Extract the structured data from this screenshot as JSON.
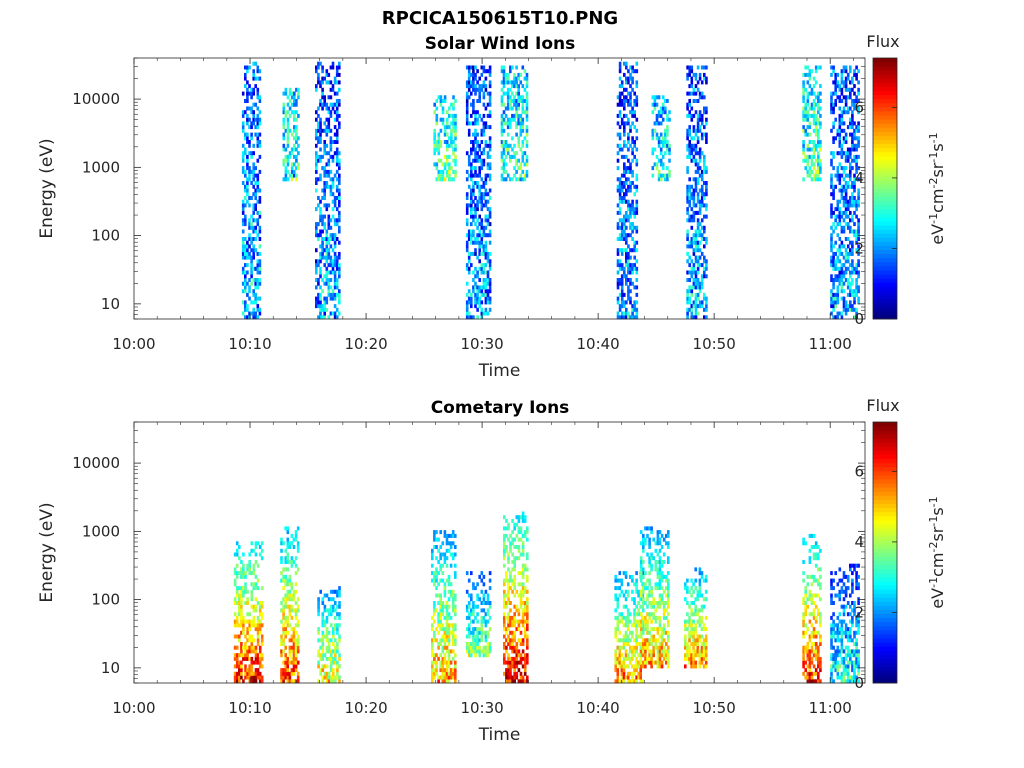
{
  "figure": {
    "title": "RPCICA150615T10.PNG"
  },
  "chart_data": [
    {
      "type": "heatmap",
      "title": "Solar Wind Ions",
      "xlabel": "Time",
      "ylabel": "Energy (eV)",
      "x_ticks": [
        "10:00",
        "10:10",
        "10:20",
        "10:30",
        "10:40",
        "10:50",
        "11:00"
      ],
      "x_range_minutes": [
        0,
        63
      ],
      "y_scale": "log",
      "y_ticks": [
        "10",
        "100",
        "1000",
        "10000"
      ],
      "y_range": [
        6,
        40000
      ],
      "colorbar": {
        "title": "Flux",
        "label": "eV-1cm-2sr-1s-1",
        "range": [
          0,
          7.4
        ],
        "ticks": [
          "0",
          "2",
          "4",
          "6"
        ],
        "colormap": "jet"
      },
      "bursts": [
        {
          "t0": 9.3,
          "t1": 10.8,
          "emin": 6,
          "emax": 35000,
          "level": 1.6
        },
        {
          "t0": 12.8,
          "t1": 14.2,
          "emin": 600,
          "emax": 15000,
          "level": 2.4
        },
        {
          "t0": 15.6,
          "t1": 17.6,
          "emin": 6,
          "emax": 35000,
          "level": 1.4
        },
        {
          "t0": 25.8,
          "t1": 27.6,
          "emin": 600,
          "emax": 12000,
          "level": 2.6
        },
        {
          "t0": 28.6,
          "t1": 30.6,
          "emin": 6,
          "emax": 30000,
          "level": 1.4
        },
        {
          "t0": 31.6,
          "t1": 33.8,
          "emin": 600,
          "emax": 30000,
          "level": 2.4
        },
        {
          "t0": 41.6,
          "t1": 43.4,
          "emin": 6,
          "emax": 35000,
          "level": 1.4
        },
        {
          "t0": 44.6,
          "t1": 46.2,
          "emin": 600,
          "emax": 12000,
          "level": 2.2
        },
        {
          "t0": 47.6,
          "t1": 49.4,
          "emin": 6,
          "emax": 30000,
          "level": 1.5
        },
        {
          "t0": 57.6,
          "t1": 59.2,
          "emin": 600,
          "emax": 30000,
          "level": 2.6
        },
        {
          "t0": 60.0,
          "t1": 62.4,
          "emin": 6,
          "emax": 30000,
          "level": 1.5
        }
      ]
    },
    {
      "type": "heatmap",
      "title": "Cometary Ions",
      "xlabel": "Time",
      "ylabel": "Energy (eV)",
      "x_ticks": [
        "10:00",
        "10:10",
        "10:20",
        "10:30",
        "10:40",
        "10:50",
        "11:00"
      ],
      "x_range_minutes": [
        0,
        63
      ],
      "y_scale": "log",
      "y_ticks": [
        "10",
        "100",
        "1000",
        "10000"
      ],
      "y_range": [
        6,
        40000
      ],
      "colorbar": {
        "title": "Flux",
        "label": "eV-1cm-2sr-1s-1",
        "range": [
          0,
          7.4
        ],
        "ticks": [
          "0",
          "2",
          "4",
          "6"
        ],
        "colormap": "jet"
      },
      "bursts": [
        {
          "t0": 8.6,
          "t1": 11.0,
          "emin": 6,
          "emax": 700,
          "level": 5.6
        },
        {
          "t0": 12.6,
          "t1": 14.2,
          "emin": 6,
          "emax": 1200,
          "level": 5.2
        },
        {
          "t0": 15.8,
          "t1": 17.6,
          "emin": 6,
          "emax": 150,
          "level": 4.2
        },
        {
          "t0": 25.6,
          "t1": 27.6,
          "emin": 6,
          "emax": 1000,
          "level": 4.6
        },
        {
          "t0": 28.6,
          "t1": 30.6,
          "emin": 15,
          "emax": 250,
          "level": 3.4
        },
        {
          "t0": 31.8,
          "t1": 33.8,
          "emin": 6,
          "emax": 2000,
          "level": 5.8
        },
        {
          "t0": 41.4,
          "t1": 43.8,
          "emin": 6,
          "emax": 250,
          "level": 4.8
        },
        {
          "t0": 43.6,
          "t1": 46.0,
          "emin": 10,
          "emax": 1200,
          "level": 4.6
        },
        {
          "t0": 47.4,
          "t1": 49.2,
          "emin": 10,
          "emax": 300,
          "level": 4.8
        },
        {
          "t0": 57.6,
          "t1": 59.2,
          "emin": 6,
          "emax": 900,
          "level": 5.4
        },
        {
          "t0": 60.0,
          "t1": 62.4,
          "emin": 6,
          "emax": 350,
          "level": 2.6
        }
      ]
    }
  ]
}
